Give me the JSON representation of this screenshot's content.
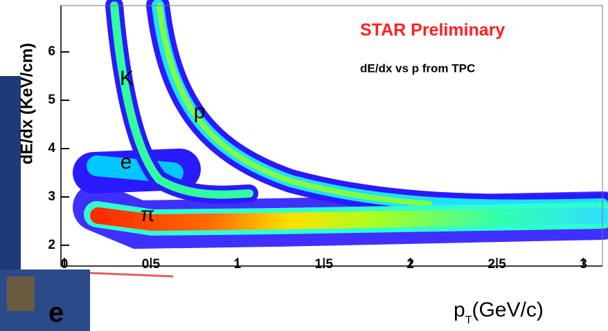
{
  "chart_data": {
    "type": "density",
    "y_label": "dE/dx (KeV/cm)",
    "x_label": {
      "base": "p",
      "sub": "T",
      "rest": "(GeV/c)"
    },
    "xlim": [
      -0.02,
      3.11
    ],
    "ylim": [
      1.57,
      6.96
    ],
    "xticks": [
      0,
      0.5,
      1,
      1.5,
      2,
      2.5,
      3
    ],
    "yticks": [
      2,
      3,
      4,
      5,
      6
    ],
    "grid": false,
    "annotations": [
      {
        "text": "STAR Preliminary",
        "color": "#ff2020"
      },
      {
        "text": "dE/dx vs p from TPC",
        "color": "#000000"
      }
    ],
    "particle_labels": [
      "K",
      "p",
      "e",
      "π"
    ],
    "background_text": "e"
  }
}
